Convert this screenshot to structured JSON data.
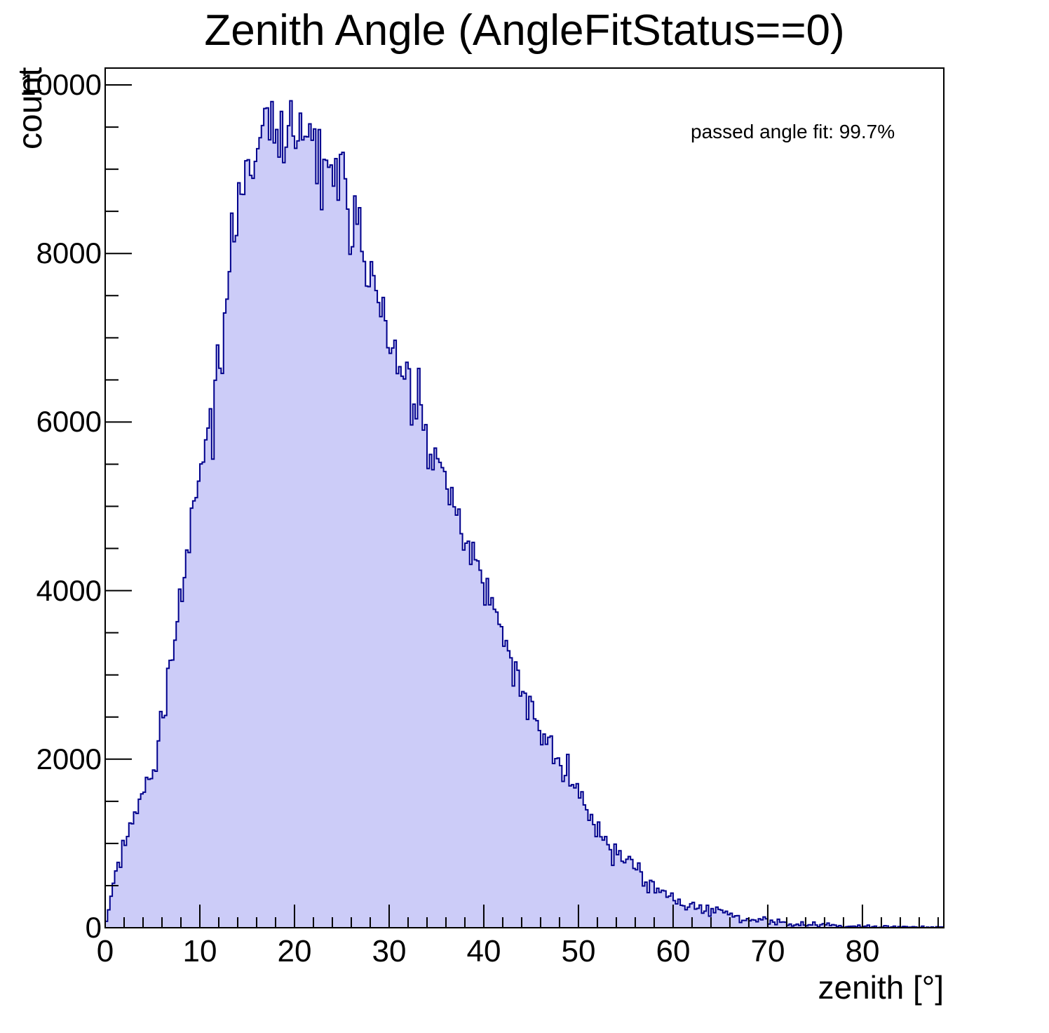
{
  "title": "Zenith Angle (AngleFitStatus==0)",
  "annotation": {
    "text": "passed angle fit: 99.7%"
  },
  "y_axis": {
    "label": "count",
    "tick_labels": [
      "0",
      "2000",
      "4000",
      "6000",
      "8000",
      "10000"
    ]
  },
  "x_axis": {
    "label": "zenith [°]",
    "tick_labels": [
      "0",
      "10",
      "20",
      "30",
      "40",
      "50",
      "60",
      "70",
      "80"
    ]
  },
  "colors": {
    "hist_fill": "#ccccf8",
    "hist_line": "#00008c",
    "axis": "#000000",
    "background": "#ffffff",
    "text": "#000000"
  },
  "chart_data": {
    "type": "bar",
    "subtype": "step-histogram",
    "title": "Zenith Angle (AngleFitStatus==0)",
    "xlabel": "zenith [°]",
    "ylabel": "count",
    "xlim": [
      0,
      88.6
    ],
    "ylim": [
      0,
      10200
    ],
    "grid": false,
    "legend": "none",
    "x_major_tick_step": 10,
    "x_minor_tick_step": 2,
    "x_tick_max": 88,
    "y_major_tick_step": 2000,
    "y_minor_tick_step": 500,
    "y_tick_max": 10000,
    "bin_width_deg": 0.25,
    "data_range_deg": [
      0,
      88.5
    ],
    "envelope_sample_step_deg": 1,
    "envelope_counts_per_degree": [
      20,
      600,
      950,
      1290,
      1560,
      1780,
      2380,
      3120,
      3900,
      4680,
      5400,
      6100,
      6800,
      7500,
      8500,
      8950,
      9250,
      9550,
      9420,
      9350,
      9300,
      9350,
      9400,
      9100,
      8950,
      8800,
      8450,
      8100,
      7650,
      7300,
      6950,
      6650,
      6400,
      6100,
      5800,
      5500,
      5200,
      4900,
      4600,
      4300,
      4050,
      3750,
      3450,
      3150,
      2880,
      2620,
      2380,
      2150,
      1930,
      1720,
      1530,
      1340,
      1170,
      1010,
      880,
      780,
      680,
      580,
      470,
      395,
      330,
      295,
      262,
      232,
      200,
      175,
      150,
      128,
      110,
      95,
      82,
      70,
      60,
      52,
      45,
      39,
      34,
      29,
      25,
      22,
      19,
      16,
      13,
      11,
      9,
      8,
      6,
      5,
      4
    ],
    "peak": {
      "deg": 17,
      "count": 9720
    },
    "notable_bins": [
      {
        "deg": 11.375,
        "count": 5560
      },
      {
        "deg": 16.875,
        "count": 9720
      },
      {
        "deg": 22.625,
        "count": 9470
      },
      {
        "deg": 22.875,
        "count": 8520
      },
      {
        "deg": 25.125,
        "count": 9200
      }
    ],
    "noise": {
      "seed": 77,
      "sigma_scale": 2.4
    },
    "annotation": {
      "text": "passed angle fit: 99.7%"
    }
  }
}
